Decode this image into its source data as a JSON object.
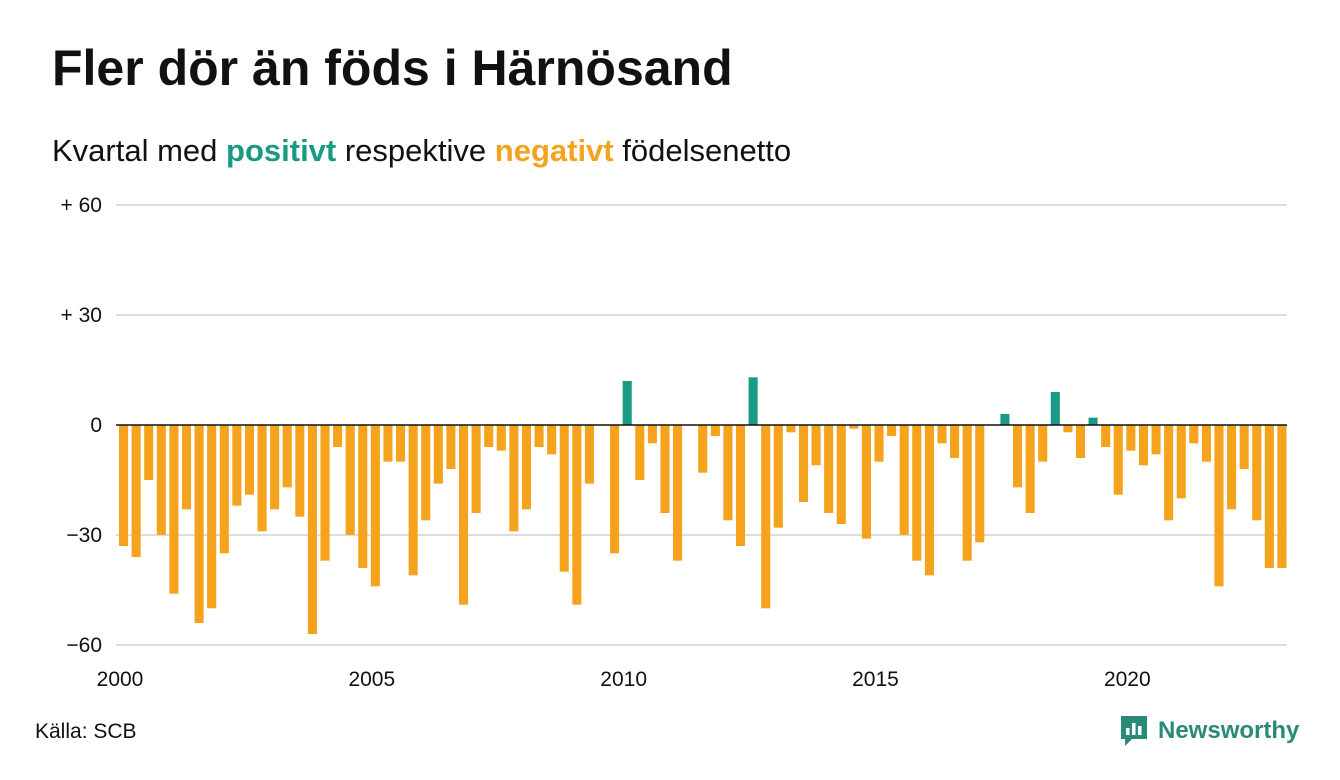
{
  "title": "Fler dör än föds i Härnösand",
  "subtitle": {
    "prefix": "Kvartal med ",
    "positive": "positivt",
    "middle": " respektive ",
    "negative": "negativt",
    "suffix": " födelsenetto"
  },
  "source": "Källa: SCB",
  "brand": {
    "name": "Newsworthy",
    "icon": "newsworthy-logo-icon"
  },
  "colors": {
    "positive": "#1a9985",
    "negative": "#f5a21d",
    "grid": "#dddddd",
    "zero_line": "#111111"
  },
  "chart_data": {
    "type": "bar",
    "title": "Fler dör än föds i Härnösand",
    "subtitle": "Kvartal med positivt respektive negativt födelsenetto",
    "frequency": "quarterly",
    "start": "2000-Q1",
    "ylim": [
      -60,
      60
    ],
    "yticks": [
      {
        "value": 60,
        "label": "+ 60"
      },
      {
        "value": 30,
        "label": "+ 30"
      },
      {
        "value": 0,
        "label": "0"
      },
      {
        "value": -30,
        "label": "−30"
      },
      {
        "value": -60,
        "label": "−60"
      }
    ],
    "xticks": [
      "2000",
      "2005",
      "2010",
      "2015",
      "2020"
    ],
    "grid": true,
    "values": [
      -33,
      -36,
      -15,
      -30,
      -46,
      -23,
      -54,
      -50,
      -35,
      -22,
      -19,
      -29,
      -23,
      -17,
      -25,
      -57,
      -37,
      -6,
      -30,
      -39,
      -44,
      -10,
      -10,
      -41,
      -26,
      -16,
      -12,
      -49,
      -24,
      -6,
      -7,
      -29,
      -23,
      -6,
      -8,
      -40,
      -49,
      -16,
      0,
      -35,
      12,
      -15,
      -5,
      -24,
      -37,
      0,
      -13,
      -3,
      -26,
      -33,
      13,
      -50,
      -28,
      -2,
      -21,
      -11,
      -24,
      -27,
      -1,
      -31,
      -10,
      -3,
      -30,
      -37,
      -41,
      -5,
      -9,
      -37,
      -32,
      0,
      3,
      -17,
      -24,
      -10,
      9,
      -2,
      -9,
      2,
      -6,
      -19,
      -7,
      -11,
      -8,
      -26,
      -20,
      -5,
      -10,
      -44,
      -23,
      -12,
      -26,
      -39,
      -39
    ]
  }
}
